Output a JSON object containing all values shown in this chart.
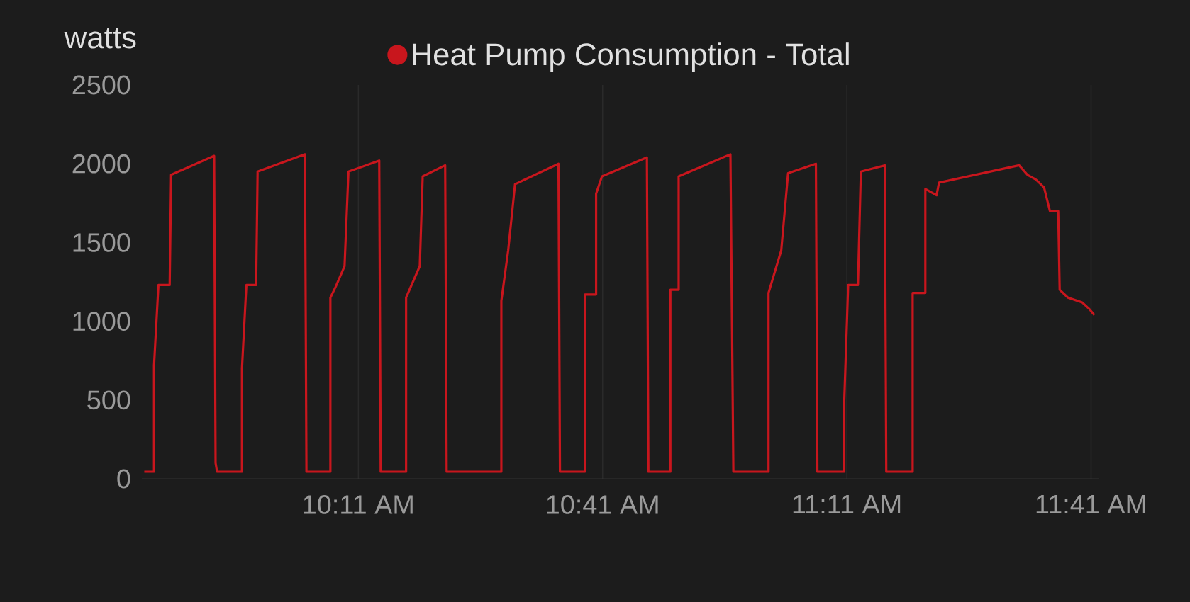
{
  "chart_data": {
    "type": "line",
    "ylabel": "watts",
    "legend": "top",
    "grid": "x",
    "x": [
      9.745,
      9.765,
      9.765,
      9.774,
      9.797,
      9.8,
      9.888,
      9.891,
      9.894,
      9.945,
      9.945,
      9.954,
      9.974,
      9.977,
      10.074,
      10.077,
      10.126,
      10.126,
      10.137,
      10.155,
      10.163,
      10.226,
      10.229,
      10.281,
      10.281,
      10.295,
      10.309,
      10.315,
      10.361,
      10.364,
      10.476,
      10.476,
      10.49,
      10.504,
      10.593,
      10.596,
      10.647,
      10.647,
      10.67,
      10.67,
      10.682,
      10.774,
      10.777,
      10.822,
      10.822,
      10.839,
      10.839,
      10.945,
      10.951,
      11.023,
      11.023,
      11.049,
      11.063,
      11.12,
      11.123,
      11.178,
      11.178,
      11.186,
      11.206,
      11.212,
      11.261,
      11.264,
      11.318,
      11.318,
      11.344,
      11.344,
      11.367,
      11.372,
      11.536,
      11.553,
      11.57,
      11.587,
      11.599,
      11.616,
      11.619,
      11.636,
      11.665,
      11.679,
      11.69
    ],
    "series": [
      {
        "name": "Heat Pump Consumption - Total",
        "color": "#c8161d",
        "values": [
          45,
          45,
          720,
          1230,
          1230,
          1930,
          2050,
          100,
          45,
          45,
          700,
          1230,
          1230,
          1950,
          2060,
          45,
          45,
          1150,
          1220,
          1350,
          1950,
          2020,
          45,
          45,
          1150,
          1250,
          1350,
          1920,
          1990,
          45,
          45,
          1130,
          1450,
          1870,
          2000,
          45,
          45,
          1170,
          1170,
          1810,
          1920,
          2040,
          45,
          45,
          1200,
          1200,
          1920,
          2060,
          45,
          45,
          1180,
          1450,
          1940,
          2000,
          45,
          45,
          495,
          1230,
          1230,
          1950,
          1990,
          45,
          45,
          1180,
          1180,
          1840,
          1800,
          1880,
          1990,
          1930,
          1900,
          1850,
          1700,
          1700,
          1200,
          1150,
          1120,
          1080,
          1040
        ]
      }
    ],
    "xlim": [
      9.74,
      11.7
    ],
    "xticks": [
      {
        "value": 10.1833,
        "label": "10:11 AM"
      },
      {
        "value": 10.6833,
        "label": "10:41 AM"
      },
      {
        "value": 11.1833,
        "label": "11:11 AM"
      },
      {
        "value": 11.6833,
        "label": "11:41 AM"
      }
    ],
    "ylim": [
      0,
      2500
    ],
    "yticks": [
      0,
      500,
      1000,
      1500,
      2000,
      2500
    ]
  }
}
